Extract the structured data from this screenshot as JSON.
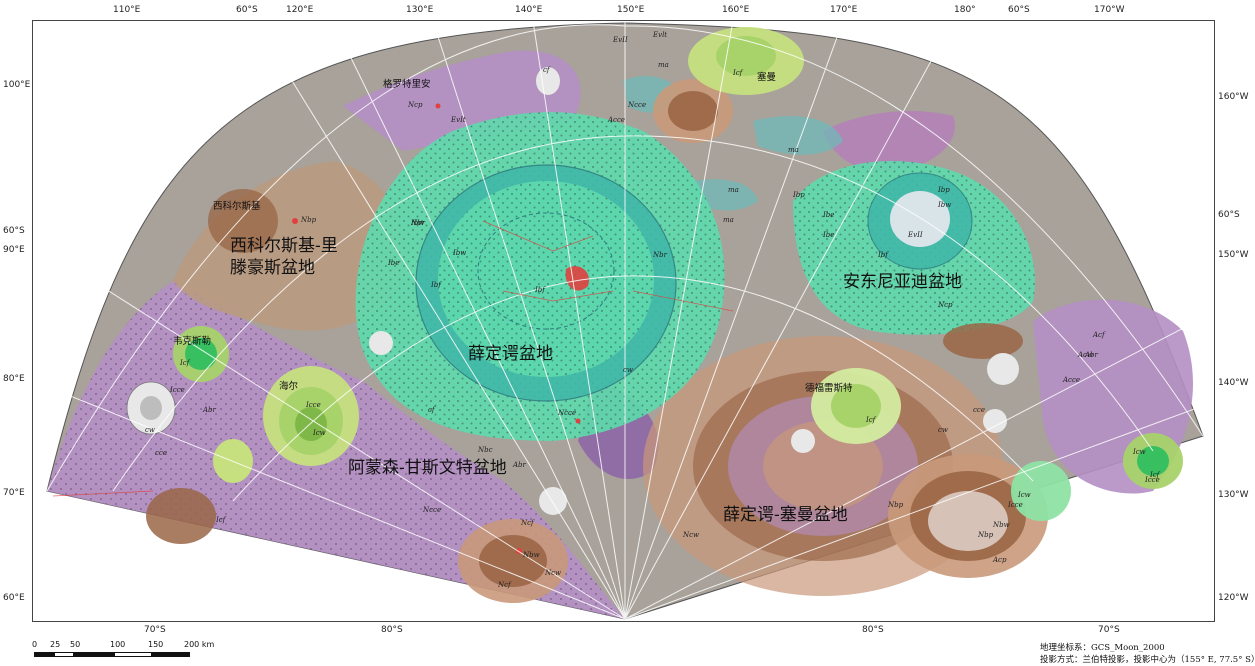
{
  "map": {
    "colors": {
      "paper": "#ffffff",
      "terra": "#a8a29a",
      "pre_nectarian": "#b48fc4",
      "pre_nectarian_dark": "#8d64a8",
      "nectarian_basin": "#5fd9ac",
      "nectarian_basin_dark": "#3fb7a8",
      "nectarian_crater": "#c9997a",
      "nectarian_crater_dark": "#9a6646",
      "imbrian_crater": "#a8d36a",
      "eratosthenian": "#d9e4e8",
      "copernican": "#e8e8e8",
      "mare": "#6fb8b8",
      "grid": "#ffffff",
      "basin_ring": "#2d7b7f",
      "impact_red": "#e0403f"
    },
    "basins": [
      {
        "id": "schrodinger-basin",
        "label": "薛定谔盆地"
      },
      {
        "id": "amundsen-ganswindt-basin",
        "label": "阿蒙森-甘斯文特盆地"
      },
      {
        "id": "schrodinger-zeeman-basin",
        "label": "薛定谔-塞曼盆地"
      },
      {
        "id": "antoniadi-basin",
        "label": "安东尼亚迪盆地"
      },
      {
        "id": "sikorsky-rittenhouse-basin",
        "label": "西科尔斯基-里\n滕豪斯盆地"
      }
    ],
    "craters": [
      {
        "id": "grotrian",
        "label": "格罗特里安"
      },
      {
        "id": "zeeman",
        "label": "塞曼"
      },
      {
        "id": "sikorsky",
        "label": "西科尔斯基"
      },
      {
        "id": "hale",
        "label": "海尔"
      },
      {
        "id": "wexler",
        "label": "韦克斯勒"
      },
      {
        "id": "de-forest",
        "label": "德福雷斯特"
      }
    ],
    "unit_labels": [
      "Ibw",
      "Ibw",
      "Ibp",
      "Ibf",
      "Ibf",
      "Ibe",
      "Ibe",
      "Ibw",
      "Ibp",
      "EvII",
      "Ibf",
      "Ibe",
      "Ncp",
      "Ncce",
      "Ncce",
      "Ncw",
      "Ncf",
      "Ncp",
      "Nbp",
      "Nbw",
      "Ncw",
      "Ncf",
      "Nbp",
      "Nbc",
      "Icf",
      "Icce",
      "Icw",
      "Icf",
      "Icce",
      "Icw",
      "Icce",
      "Icf",
      "Icce",
      "Icw",
      "Icf",
      "cf",
      "cw",
      "cce",
      "cw",
      "cf",
      "cw",
      "cce",
      "Abr",
      "Abr",
      "Abr",
      "Acf",
      "Acw",
      "Acce",
      "Acce",
      "ma",
      "ma",
      "ma",
      "ma",
      "EvII",
      "Evlt",
      "EvIt",
      "Icf",
      "Ncce",
      "Nbw",
      "Nbp",
      "Nbr",
      "Acp",
      "Nbr"
    ],
    "graticule": {
      "top": [
        "110°E",
        "60°S",
        "120°E",
        "130°E",
        "140°E",
        "150°E",
        "160°E",
        "170°E",
        "180°",
        "60°S",
        "170°W"
      ],
      "left": [
        "100°E",
        "60°S",
        "90°E",
        "80°E",
        "70°E",
        "60°E"
      ],
      "right": [
        "160°W",
        "60°S",
        "150°W",
        "140°W",
        "130°W",
        "120°W"
      ],
      "bottom": [
        "70°S",
        "80°S",
        "80°S",
        "70°S"
      ]
    }
  },
  "scale_bar": {
    "ticks": [
      "0",
      "25",
      "50",
      "100",
      "150",
      "200 km"
    ]
  },
  "footer": {
    "coordinate_system": "地理坐标系：GCS_Moon_2000",
    "projection": "投影方式：兰伯特投影，投影中心为（155° E, 77.5° S）"
  }
}
